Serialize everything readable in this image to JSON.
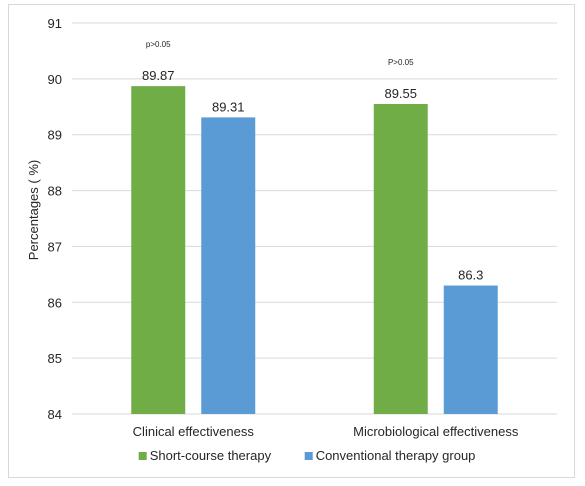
{
  "chart_data": {
    "type": "bar",
    "title": "",
    "xlabel": "",
    "ylabel": "Percentages ( %)",
    "ylim": [
      84,
      91
    ],
    "yticks": [
      84,
      85,
      86,
      87,
      88,
      89,
      90,
      91
    ],
    "grid": true,
    "legend": "bottom",
    "categories": [
      "Clinical effectiveness",
      "Microbiological effectiveness"
    ],
    "series": [
      {
        "name": "Short-course therapy",
        "color": "#70ad47",
        "values": [
          89.87,
          89.55
        ],
        "labels": [
          "89.87",
          "89.55"
        ]
      },
      {
        "name": "Conventional therapy group",
        "color": "#5b9bd5",
        "values": [
          89.31,
          86.3
        ],
        "labels": [
          "89.31",
          "86.3"
        ]
      }
    ],
    "annotations": [
      {
        "category_index": 0,
        "text": "p>0.05"
      },
      {
        "category_index": 1,
        "text": "P>0.05"
      }
    ]
  }
}
